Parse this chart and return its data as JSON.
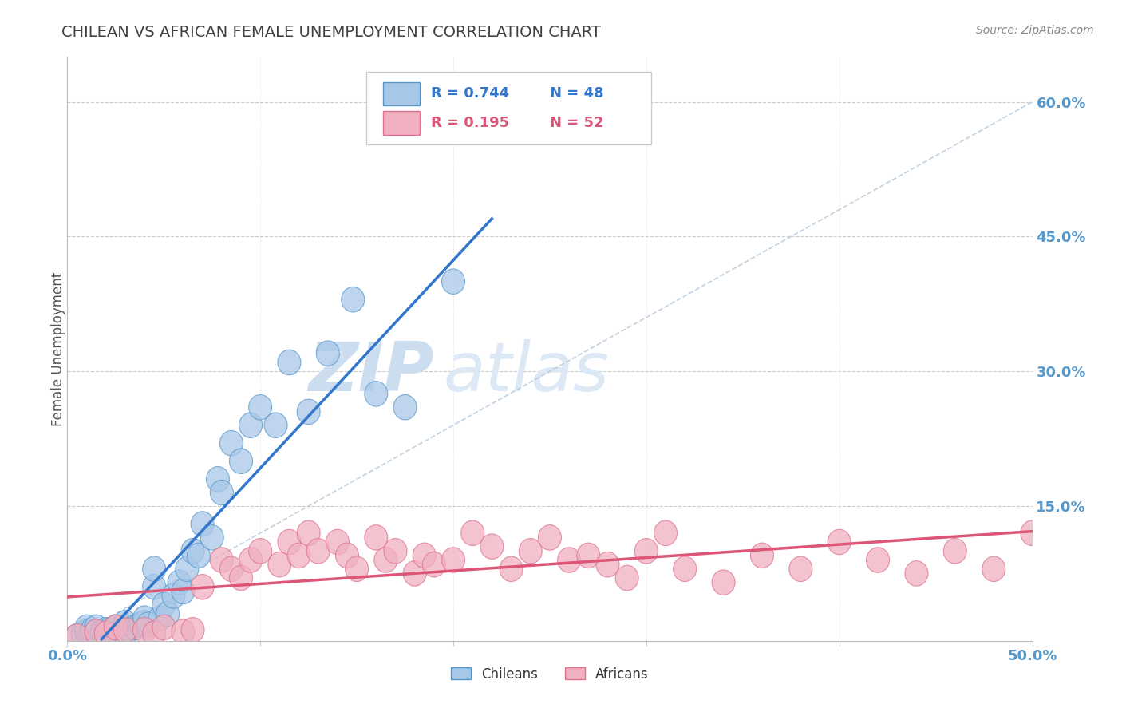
{
  "title": "CHILEAN VS AFRICAN FEMALE UNEMPLOYMENT CORRELATION CHART",
  "source": "Source: ZipAtlas.com",
  "ylabel": "Female Unemployment",
  "xlim": [
    0.0,
    0.5
  ],
  "ylim": [
    0.0,
    0.65
  ],
  "yticks": [
    0.0,
    0.15,
    0.3,
    0.45,
    0.6
  ],
  "ytick_labels": [
    "",
    "15.0%",
    "30.0%",
    "45.0%",
    "60.0%"
  ],
  "xtick_labels": [
    "0.0%",
    "50.0%"
  ],
  "xtick_vals": [
    0.0,
    0.5
  ],
  "legend_blue_r": "R = 0.744",
  "legend_blue_n": "N = 48",
  "legend_pink_r": "R = 0.195",
  "legend_pink_n": "N = 52",
  "legend_label_blue": "Chileans",
  "legend_label_pink": "Africans",
  "blue_fill": "#a8c8e8",
  "blue_edge": "#5599cc",
  "pink_fill": "#f0b0c0",
  "pink_edge": "#e07090",
  "blue_line_color": "#3377cc",
  "pink_line_color": "#dd5577",
  "diag_line_color": "#bbccdd",
  "grid_color": "#cccccc",
  "title_color": "#404040",
  "axis_label_color": "#5599cc",
  "watermark_zip_color": "#ccddf0",
  "watermark_atlas_color": "#dde8f5",
  "chilean_x": [
    0.005,
    0.008,
    0.01,
    0.01,
    0.012,
    0.013,
    0.015,
    0.015,
    0.018,
    0.02,
    0.022,
    0.025,
    0.028,
    0.03,
    0.03,
    0.032,
    0.035,
    0.038,
    0.04,
    0.04,
    0.042,
    0.045,
    0.045,
    0.048,
    0.05,
    0.052,
    0.055,
    0.058,
    0.06,
    0.062,
    0.065,
    0.068,
    0.07,
    0.075,
    0.078,
    0.08,
    0.085,
    0.09,
    0.095,
    0.1,
    0.108,
    0.115,
    0.125,
    0.135,
    0.148,
    0.16,
    0.175,
    0.2
  ],
  "chilean_y": [
    0.005,
    0.008,
    0.01,
    0.015,
    0.008,
    0.012,
    0.01,
    0.015,
    0.01,
    0.012,
    0.012,
    0.015,
    0.008,
    0.015,
    0.02,
    0.012,
    0.015,
    0.018,
    0.02,
    0.025,
    0.018,
    0.06,
    0.08,
    0.025,
    0.04,
    0.03,
    0.05,
    0.065,
    0.055,
    0.08,
    0.1,
    0.095,
    0.13,
    0.115,
    0.18,
    0.165,
    0.22,
    0.2,
    0.24,
    0.26,
    0.24,
    0.31,
    0.255,
    0.32,
    0.38,
    0.275,
    0.26,
    0.4
  ],
  "african_x": [
    0.005,
    0.015,
    0.02,
    0.025,
    0.03,
    0.04,
    0.045,
    0.05,
    0.06,
    0.065,
    0.07,
    0.08,
    0.085,
    0.09,
    0.095,
    0.1,
    0.11,
    0.115,
    0.12,
    0.125,
    0.13,
    0.14,
    0.145,
    0.15,
    0.16,
    0.165,
    0.17,
    0.18,
    0.185,
    0.19,
    0.2,
    0.21,
    0.22,
    0.23,
    0.24,
    0.25,
    0.26,
    0.27,
    0.28,
    0.29,
    0.3,
    0.31,
    0.32,
    0.34,
    0.36,
    0.38,
    0.4,
    0.42,
    0.44,
    0.46,
    0.48,
    0.5
  ],
  "african_y": [
    0.005,
    0.01,
    0.008,
    0.015,
    0.012,
    0.012,
    0.008,
    0.015,
    0.01,
    0.012,
    0.06,
    0.09,
    0.08,
    0.07,
    0.09,
    0.1,
    0.085,
    0.11,
    0.095,
    0.12,
    0.1,
    0.11,
    0.095,
    0.08,
    0.115,
    0.09,
    0.1,
    0.075,
    0.095,
    0.085,
    0.09,
    0.12,
    0.105,
    0.08,
    0.1,
    0.115,
    0.09,
    0.095,
    0.085,
    0.07,
    0.1,
    0.12,
    0.08,
    0.065,
    0.095,
    0.08,
    0.11,
    0.09,
    0.075,
    0.1,
    0.08,
    0.12
  ]
}
